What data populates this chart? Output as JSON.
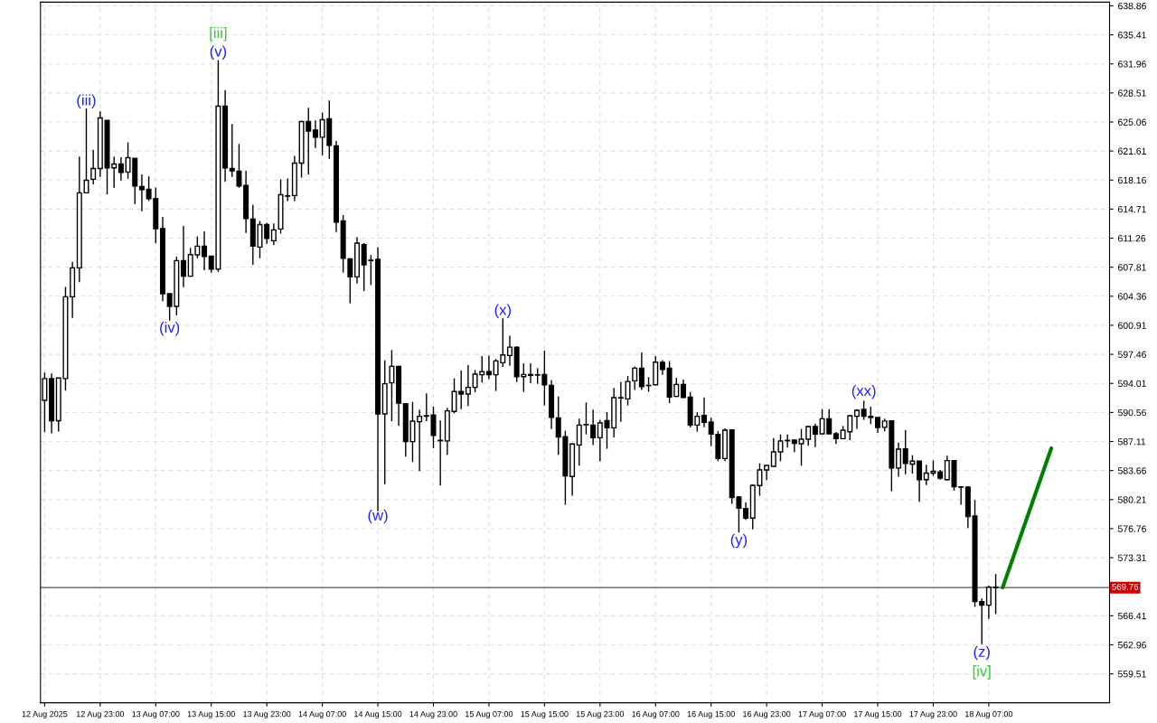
{
  "chart_data": {
    "type": "candlestick",
    "series": [
      {
        "color": "#000000",
        "ohlc": [
          [
            592.0,
            595.3,
            588.2,
            594.58
          ],
          [
            594.58,
            595.19,
            588.07,
            589.58
          ],
          [
            589.58,
            594.65,
            588.29,
            594.65
          ],
          [
            594.58,
            605.48,
            593.15,
            604.3
          ],
          [
            604.3,
            608.45,
            601.8,
            607.74
          ],
          [
            607.74,
            620.96,
            606.02,
            616.64
          ],
          [
            616.64,
            626.68,
            616.64,
            618.14
          ],
          [
            618.25,
            621.75,
            617.64,
            619.53
          ],
          [
            619.53,
            626.33,
            618.53,
            625.54
          ],
          [
            625.25,
            625.25,
            616.46,
            619.61
          ],
          [
            619.61,
            620.96,
            617.25,
            620.07
          ],
          [
            620.07,
            620.86,
            618.1,
            619.07
          ],
          [
            619.11,
            622.64,
            618.32,
            620.82
          ],
          [
            620.75,
            620.75,
            615.31,
            617.46
          ],
          [
            617.39,
            618.82,
            614.46,
            617.03
          ],
          [
            617.07,
            618.6,
            615.67,
            615.96
          ],
          [
            615.96,
            617.28,
            610.67,
            612.39
          ],
          [
            612.39,
            613.78,
            603.77,
            604.66
          ],
          [
            604.66,
            604.66,
            601.48,
            603.16
          ],
          [
            603.16,
            609.05,
            602.09,
            608.59
          ],
          [
            608.59,
            612.71,
            605.45,
            606.74
          ],
          [
            606.74,
            610.1,
            606.74,
            609.31
          ],
          [
            609.28,
            611.49,
            608.88,
            610.31
          ],
          [
            610.31,
            612.06,
            607.45,
            609.09
          ],
          [
            609.13,
            609.13,
            607.17,
            607.59
          ],
          [
            607.59,
            632.4,
            607.27,
            626.93
          ],
          [
            626.93,
            628.83,
            617.96,
            619.61
          ],
          [
            619.53,
            624.82,
            618.53,
            619.25
          ],
          [
            619.21,
            622.46,
            617.25,
            617.46
          ],
          [
            617.53,
            619.25,
            611.88,
            613.6
          ],
          [
            613.53,
            615.24,
            608.09,
            610.31
          ],
          [
            610.2,
            613.31,
            608.88,
            612.88
          ],
          [
            612.88,
            613.1,
            610.6,
            611.24
          ],
          [
            610.95,
            613.0,
            610.42,
            612.24
          ],
          [
            612.35,
            618.25,
            611.81,
            616.42
          ],
          [
            616.25,
            618.35,
            615.67,
            616.3
          ],
          [
            616.32,
            621.04,
            615.67,
            620.18
          ],
          [
            620.18,
            625.2,
            618.46,
            625.11
          ],
          [
            625.11,
            626.76,
            618.82,
            623.97
          ],
          [
            624.11,
            625.25,
            621.96,
            623.25
          ],
          [
            623.25,
            626.18,
            621.11,
            625.32
          ],
          [
            625.43,
            627.61,
            620.68,
            622.29
          ],
          [
            622.22,
            622.79,
            611.99,
            613.17
          ],
          [
            613.31,
            613.99,
            607.17,
            608.88
          ],
          [
            608.81,
            608.81,
            603.52,
            606.66
          ],
          [
            606.66,
            611.38,
            605.88,
            610.67
          ],
          [
            610.48,
            610.69,
            604.97,
            608.08
          ],
          [
            608.64,
            609.26,
            605.69,
            608.6
          ],
          [
            608.76,
            610.19,
            578.81,
            590.39
          ],
          [
            590.39,
            596.75,
            582.03,
            593.97
          ],
          [
            594.07,
            597.97,
            589.53,
            596.04
          ],
          [
            596.04,
            596.1,
            589.0,
            591.68
          ],
          [
            591.61,
            591.61,
            585.32,
            587.1
          ],
          [
            587.1,
            591.82,
            584.67,
            589.53
          ],
          [
            589.46,
            590.89,
            583.6,
            590.1
          ],
          [
            590.12,
            592.82,
            589.53,
            590.18
          ],
          [
            590.25,
            591.25,
            586.32,
            587.82
          ],
          [
            587.25,
            589.6,
            581.89,
            587.2
          ],
          [
            587.18,
            591.11,
            585.53,
            590.75
          ],
          [
            590.68,
            594.61,
            590.46,
            593.04
          ],
          [
            593.04,
            595.54,
            590.96,
            592.75
          ],
          [
            592.75,
            596.18,
            591.32,
            593.54
          ],
          [
            593.54,
            595.61,
            592.96,
            595.11
          ],
          [
            595.04,
            597.25,
            594.11,
            595.4
          ],
          [
            595.4,
            597.32,
            594.54,
            595.04
          ],
          [
            595.04,
            596.9,
            593.11,
            596.68
          ],
          [
            596.46,
            601.75,
            595.96,
            597.39
          ],
          [
            597.32,
            599.68,
            596.1,
            598.32
          ],
          [
            598.32,
            598.4,
            594.17,
            594.82
          ],
          [
            594.82,
            596.39,
            592.99,
            595.07
          ],
          [
            595.07,
            596.39,
            594.03,
            594.96
          ],
          [
            595.04,
            595.82,
            593.96,
            595.0
          ],
          [
            595.07,
            597.89,
            591.39,
            593.85
          ],
          [
            593.78,
            594.39,
            588.6,
            589.99
          ],
          [
            589.92,
            592.46,
            585.52,
            587.63
          ],
          [
            587.67,
            588.38,
            579.59,
            583.02
          ],
          [
            582.95,
            586.9,
            580.66,
            586.81
          ],
          [
            586.7,
            589.81,
            584.24,
            589.06
          ],
          [
            589.13,
            591.74,
            587.95,
            589.1
          ],
          [
            589.06,
            590.89,
            586.67,
            587.56
          ],
          [
            587.56,
            589.67,
            584.74,
            589.31
          ],
          [
            589.6,
            590.6,
            586.24,
            588.74
          ],
          [
            588.74,
            593.46,
            587.6,
            592.32
          ],
          [
            592.28,
            594.17,
            589.46,
            592.32
          ],
          [
            592.17,
            594.89,
            591.39,
            594.24
          ],
          [
            594.32,
            596.03,
            593.24,
            595.82
          ],
          [
            595.82,
            597.68,
            593.24,
            593.64
          ],
          [
            593.78,
            594.75,
            593.03,
            593.75
          ],
          [
            593.85,
            597.25,
            593.85,
            596.53
          ],
          [
            596.5,
            596.78,
            595.03,
            595.67
          ],
          [
            595.82,
            596.67,
            591.67,
            592.39
          ],
          [
            592.46,
            594.67,
            592.4,
            593.89
          ],
          [
            593.89,
            594.46,
            592.28,
            592.35
          ],
          [
            592.39,
            592.99,
            588.78,
            589.06
          ],
          [
            589.06,
            590.6,
            588.27,
            590.1
          ],
          [
            590.2,
            592.35,
            588.81,
            589.38
          ],
          [
            589.42,
            589.95,
            586.56,
            587.99
          ],
          [
            587.95,
            588.35,
            584.77,
            585.09
          ],
          [
            585.09,
            588.67,
            584.77,
            588.45
          ],
          [
            588.49,
            588.55,
            579.7,
            580.45
          ],
          [
            580.52,
            580.6,
            576.3,
            579.2
          ],
          [
            579.16,
            579.88,
            577.8,
            578.02
          ],
          [
            578.02,
            582.0,
            576.66,
            581.91
          ],
          [
            581.88,
            584.52,
            580.66,
            583.73
          ],
          [
            583.73,
            584.3,
            582.52,
            584.27
          ],
          [
            584.16,
            587.52,
            584.16,
            585.88
          ],
          [
            585.88,
            587.95,
            584.77,
            587.17
          ],
          [
            587.24,
            587.95,
            586.38,
            587.2
          ],
          [
            587.28,
            587.3,
            585.84,
            586.88
          ],
          [
            586.84,
            588.6,
            584.24,
            587.38
          ],
          [
            587.38,
            589.0,
            586.6,
            588.88
          ],
          [
            588.88,
            589.24,
            586.45,
            587.99
          ],
          [
            588.03,
            590.96,
            588.0,
            589.81
          ],
          [
            589.81,
            590.96,
            588.0,
            588.03
          ],
          [
            588.03,
            588.24,
            586.81,
            587.45
          ],
          [
            587.45,
            588.95,
            587.4,
            588.45
          ],
          [
            588.26,
            590.2,
            587.26,
            590.17
          ],
          [
            590.1,
            590.96,
            588.61,
            590.82
          ],
          [
            590.92,
            591.95,
            589.68,
            590.1
          ],
          [
            590.1,
            591.24,
            589.18,
            589.96
          ],
          [
            589.96,
            589.96,
            588.12,
            588.76
          ],
          [
            588.79,
            589.82,
            588.33,
            589.54
          ],
          [
            589.57,
            589.6,
            581.2,
            583.96
          ],
          [
            583.96,
            586.98,
            582.93,
            586.2
          ],
          [
            586.24,
            588.47,
            583.22,
            584.5
          ],
          [
            584.43,
            585.49,
            583.29,
            584.78
          ],
          [
            584.78,
            584.8,
            579.95,
            582.58
          ],
          [
            582.58,
            584.35,
            581.94,
            583.36
          ],
          [
            583.36,
            584.85,
            583.0,
            583.57
          ],
          [
            583.5,
            583.72,
            582.58,
            582.76
          ],
          [
            582.58,
            585.42,
            582.5,
            584.85
          ],
          [
            584.85,
            584.9,
            581.3,
            581.73
          ],
          [
            581.73,
            581.8,
            579.6,
            581.69
          ],
          [
            581.69,
            581.8,
            576.83,
            578.21
          ],
          [
            578.25,
            580.17,
            567.46,
            568.1
          ],
          [
            568.1,
            568.45,
            563.05,
            567.67
          ],
          [
            567.67,
            570.01,
            566.04,
            569.8
          ],
          [
            569.8,
            571.36,
            566.6,
            569.76
          ],
          null,
          null,
          null,
          null,
          null,
          null,
          null,
          null,
          null,
          null,
          null,
          null,
          null,
          null,
          null,
          null
        ]
      },
      {
        "type": "line",
        "color": "#008000",
        "values": [
          null,
          null,
          null,
          null,
          null,
          null,
          null,
          null,
          null,
          null,
          null,
          null,
          null,
          null,
          null,
          null,
          null,
          null,
          null,
          null,
          null,
          null,
          null,
          null,
          null,
          null,
          null,
          null,
          null,
          null,
          null,
          null,
          null,
          null,
          null,
          null,
          null,
          null,
          null,
          null,
          null,
          null,
          null,
          null,
          null,
          null,
          null,
          null,
          null,
          null,
          null,
          null,
          null,
          null,
          null,
          null,
          null,
          null,
          null,
          null,
          null,
          null,
          null,
          null,
          null,
          null,
          null,
          null,
          null,
          null,
          null,
          null,
          null,
          null,
          null,
          null,
          null,
          null,
          null,
          null,
          null,
          null,
          null,
          null,
          null,
          null,
          null,
          null,
          null,
          null,
          null,
          null,
          null,
          null,
          null,
          null,
          null,
          null,
          null,
          null,
          null,
          null,
          null,
          null,
          null,
          null,
          null,
          null,
          null,
          null,
          null,
          null,
          null,
          null,
          null,
          null,
          null,
          null,
          null,
          null,
          null,
          null,
          null,
          null,
          null,
          null,
          null,
          null,
          null,
          null,
          null,
          null,
          null,
          null,
          null,
          null,
          null,
          null,
          569.76,
          null,
          null,
          null,
          null,
          null,
          null,
          586.3,
          null,
          null,
          null,
          null,
          null,
          null,
          null,
          null
        ]
      }
    ],
    "categories": [
      "12 Aug 2025",
      null,
      null,
      null,
      null,
      null,
      null,
      null,
      "12 Aug 23:00",
      null,
      null,
      null,
      null,
      null,
      null,
      null,
      "13 Aug 07:00",
      null,
      null,
      null,
      null,
      null,
      null,
      null,
      "13 Aug 15:00",
      null,
      null,
      null,
      null,
      null,
      null,
      null,
      "13 Aug 23:00",
      null,
      null,
      null,
      null,
      null,
      null,
      null,
      "14 Aug 07:00",
      null,
      null,
      null,
      null,
      null,
      null,
      null,
      "14 Aug 15:00",
      null,
      null,
      null,
      null,
      null,
      null,
      null,
      "14 Aug 23:00",
      null,
      null,
      null,
      null,
      null,
      null,
      null,
      "15 Aug 07:00",
      null,
      null,
      null,
      null,
      null,
      null,
      null,
      "15 Aug 15:00",
      null,
      null,
      null,
      null,
      null,
      null,
      null,
      "15 Aug 23:00",
      null,
      null,
      null,
      null,
      null,
      null,
      null,
      "16 Aug 07:00",
      null,
      null,
      null,
      null,
      null,
      null,
      null,
      "16 Aug 15:00",
      null,
      null,
      null,
      null,
      null,
      null,
      null,
      "16 Aug 23:00",
      null,
      null,
      null,
      null,
      null,
      null,
      null,
      "17 Aug 07:00",
      null,
      null,
      null,
      null,
      null,
      null,
      null,
      "17 Aug 15:00",
      null,
      null,
      null,
      null,
      null,
      null,
      null,
      "17 Aug 23:00",
      null,
      null,
      null,
      null,
      null,
      null,
      null,
      "18 Aug 07:00",
      null,
      null,
      null,
      null,
      null,
      null,
      null,
      null,
      null,
      null,
      null,
      null,
      null,
      null,
      null,
      null,
      null
    ],
    "ylim": [
      556.08,
      639.29
    ],
    "yticks": [
      559.51,
      562.96,
      566.41,
      573.31,
      576.76,
      580.21,
      583.66,
      587.11,
      590.56,
      594.01,
      597.46,
      600.91,
      604.36,
      607.81,
      611.26,
      614.71,
      618.16,
      621.61,
      625.06,
      628.51,
      631.96,
      635.41,
      638.86
    ],
    "ref_lines": [
      {
        "axis": "y",
        "value": 569.76,
        "label": "569.76",
        "color": "#555555"
      }
    ],
    "grid": true,
    "annotations": [
      "(iii)",
      "[iii]",
      "(v)",
      "(iv)",
      "(w)",
      "(x)",
      "(y)",
      "(xx)",
      "(z)",
      "[iv]"
    ]
  }
}
